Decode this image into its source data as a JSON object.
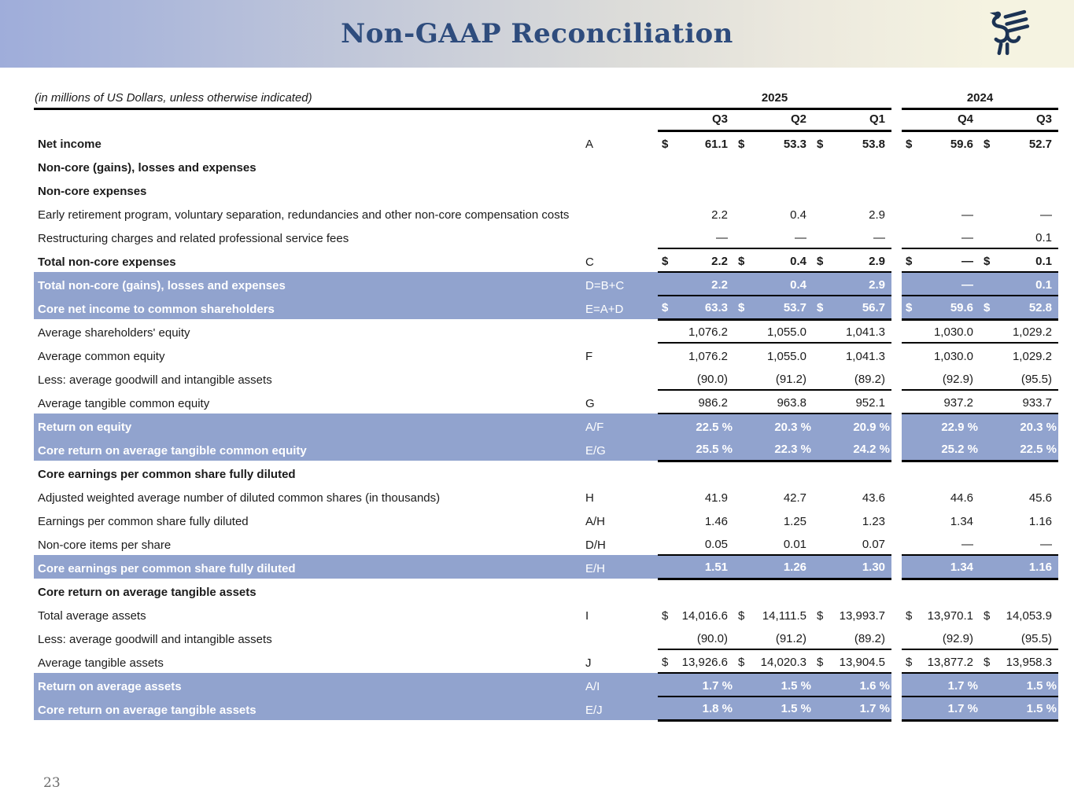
{
  "header": {
    "title": "Non-GAAP Reconciliation",
    "logo_icon": "griffin-bird-logo"
  },
  "colors": {
    "banner_left": "#9FADDA",
    "banner_right": "#F5F3E1",
    "title_navy": "#2E4C7D",
    "logo_navy": "#1C3354",
    "highlight_blue": "#91A3CE",
    "table_line": "#000000"
  },
  "page": {
    "number": "23"
  },
  "table": {
    "note": "(in millions of US Dollars, unless otherwise indicated)",
    "year_groups": [
      {
        "label": "2025",
        "quarters": [
          "Q3",
          "Q2",
          "Q1"
        ]
      },
      {
        "label": "2024",
        "quarters": [
          "Q4",
          "Q3"
        ]
      }
    ],
    "rows": [
      {
        "label": "Net income",
        "ref": "A",
        "style": "bold",
        "line": "none",
        "cells": [
          [
            "$",
            "61.1"
          ],
          [
            "$",
            "53.3"
          ],
          [
            "$",
            "53.8"
          ],
          [
            "$",
            "59.6"
          ],
          [
            "$",
            "52.7"
          ]
        ]
      },
      {
        "label": "Non-core (gains), losses and expenses",
        "ref": "",
        "style": "bold",
        "line": "none",
        "cells": null
      },
      {
        "label": "Non-core expenses",
        "ref": "",
        "style": "bold",
        "line": "none",
        "cells": null
      },
      {
        "label": "Early retirement program, voluntary separation, redundancies and other non-core compensation costs",
        "ref": "",
        "style": "normal",
        "line": "none",
        "cells": [
          [
            "",
            "2.2"
          ],
          [
            "",
            "0.4"
          ],
          [
            "",
            "2.9"
          ],
          [
            "",
            "—"
          ],
          [
            "",
            "—"
          ]
        ]
      },
      {
        "label": "Restructuring charges and related professional service fees",
        "ref": "",
        "style": "normal",
        "line": "bottom",
        "cells": [
          [
            "",
            "—"
          ],
          [
            "",
            "—"
          ],
          [
            "",
            "—"
          ],
          [
            "",
            "—"
          ],
          [
            "",
            "0.1"
          ]
        ]
      },
      {
        "label": "Total non-core expenses",
        "ref": "C",
        "style": "bold",
        "line": "bottom",
        "cells": [
          [
            "$",
            "2.2"
          ],
          [
            "$",
            "0.4"
          ],
          [
            "$",
            "2.9"
          ],
          [
            "$",
            "—"
          ],
          [
            "$",
            "0.1"
          ]
        ]
      },
      {
        "label": "Total non-core (gains), losses and expenses",
        "ref": "D=B+C",
        "style": "highlight",
        "line": "bottom",
        "cells": [
          [
            "",
            "2.2"
          ],
          [
            "",
            "0.4"
          ],
          [
            "",
            "2.9"
          ],
          [
            "",
            "—"
          ],
          [
            "",
            "0.1"
          ]
        ]
      },
      {
        "label": "Core net income to common shareholders",
        "ref": "E=A+D",
        "style": "highlight",
        "line": "bottom2",
        "cells": [
          [
            "$",
            "63.3"
          ],
          [
            "$",
            "53.7"
          ],
          [
            "$",
            "56.7"
          ],
          [
            "$",
            "59.6"
          ],
          [
            "$",
            "52.8"
          ]
        ]
      },
      {
        "label": "Average shareholders' equity",
        "ref": "",
        "style": "normal",
        "line": "bottom",
        "cells": [
          [
            "",
            "1,076.2"
          ],
          [
            "",
            "1,055.0"
          ],
          [
            "",
            "1,041.3"
          ],
          [
            "",
            "1,030.0"
          ],
          [
            "",
            "1,029.2"
          ]
        ]
      },
      {
        "label": "Average common equity",
        "ref": "F",
        "style": "normal",
        "line": "none",
        "cells": [
          [
            "",
            "1,076.2"
          ],
          [
            "",
            "1,055.0"
          ],
          [
            "",
            "1,041.3"
          ],
          [
            "",
            "1,030.0"
          ],
          [
            "",
            "1,029.2"
          ]
        ]
      },
      {
        "label": "Less: average goodwill and intangible assets",
        "ref": "",
        "style": "normal",
        "line": "bottom",
        "cells": [
          [
            "",
            "(90.0)"
          ],
          [
            "",
            "(91.2)"
          ],
          [
            "",
            "(89.2)"
          ],
          [
            "",
            "(92.9)"
          ],
          [
            "",
            "(95.5)"
          ]
        ]
      },
      {
        "label": "Average tangible common equity",
        "ref": "G",
        "style": "normal",
        "line": "bottom",
        "cells": [
          [
            "",
            "986.2"
          ],
          [
            "",
            "963.8"
          ],
          [
            "",
            "952.1"
          ],
          [
            "",
            "937.2"
          ],
          [
            "",
            "933.7"
          ]
        ]
      },
      {
        "label": "Return on equity",
        "ref": "A/F",
        "style": "highlight",
        "line": "none",
        "cells": [
          [
            "",
            "22.5 %"
          ],
          [
            "",
            "20.3 %"
          ],
          [
            "",
            "20.9 %"
          ],
          [
            "",
            "22.9 %"
          ],
          [
            "",
            "20.3 %"
          ]
        ]
      },
      {
        "label": "Core return on average tangible common equity",
        "ref": "E/G",
        "style": "highlight",
        "line": "bottom2",
        "cells": [
          [
            "",
            "25.5 %"
          ],
          [
            "",
            "22.3 %"
          ],
          [
            "",
            "24.2 %"
          ],
          [
            "",
            "25.2 %"
          ],
          [
            "",
            "22.5 %"
          ]
        ]
      },
      {
        "label": "Core earnings per common share fully diluted",
        "ref": "",
        "style": "bold",
        "line": "none",
        "cells": null
      },
      {
        "label": "Adjusted weighted average number of diluted common shares (in thousands)",
        "ref": "H",
        "style": "normal",
        "line": "none",
        "cells": [
          [
            "",
            "41.9"
          ],
          [
            "",
            "42.7"
          ],
          [
            "",
            "43.6"
          ],
          [
            "",
            "44.6"
          ],
          [
            "",
            "45.6"
          ]
        ]
      },
      {
        "label": "Earnings per common share fully diluted",
        "ref": "A/H",
        "style": "normal",
        "line": "none",
        "cells": [
          [
            "",
            "1.46"
          ],
          [
            "",
            "1.25"
          ],
          [
            "",
            "1.23"
          ],
          [
            "",
            "1.34"
          ],
          [
            "",
            "1.16"
          ]
        ]
      },
      {
        "label": "Non-core items per share",
        "ref": "D/H",
        "style": "normal",
        "line": "bottom",
        "cells": [
          [
            "",
            "0.05"
          ],
          [
            "",
            "0.01"
          ],
          [
            "",
            "0.07"
          ],
          [
            "",
            "—"
          ],
          [
            "",
            "—"
          ]
        ]
      },
      {
        "label": "Core earnings per common share fully diluted",
        "ref": "E/H",
        "style": "highlight",
        "line": "bottom2",
        "cells": [
          [
            "",
            "1.51"
          ],
          [
            "",
            "1.26"
          ],
          [
            "",
            "1.30"
          ],
          [
            "",
            "1.34"
          ],
          [
            "",
            "1.16"
          ]
        ]
      },
      {
        "label": "Core return on average tangible assets",
        "ref": "",
        "style": "bold",
        "line": "none",
        "cells": null
      },
      {
        "label": "Total average assets",
        "ref": "I",
        "style": "normal",
        "line": "none",
        "cells": [
          [
            "$",
            "14,016.6"
          ],
          [
            "$",
            "14,111.5"
          ],
          [
            "$",
            "13,993.7"
          ],
          [
            "$",
            "13,970.1"
          ],
          [
            "$",
            "14,053.9"
          ]
        ]
      },
      {
        "label": "Less: average goodwill and intangible assets",
        "ref": "",
        "style": "normal",
        "line": "bottom",
        "cells": [
          [
            "",
            "(90.0)"
          ],
          [
            "",
            "(91.2)"
          ],
          [
            "",
            "(89.2)"
          ],
          [
            "",
            "(92.9)"
          ],
          [
            "",
            "(95.5)"
          ]
        ]
      },
      {
        "label": "Average tangible assets",
        "ref": "J",
        "style": "normal",
        "line": "bottom",
        "cells": [
          [
            "$",
            "13,926.6"
          ],
          [
            "$",
            "14,020.3"
          ],
          [
            "$",
            "13,904.5"
          ],
          [
            "$",
            "13,877.2"
          ],
          [
            "$",
            "13,958.3"
          ]
        ]
      },
      {
        "label": "Return on average assets",
        "ref": "A/I",
        "style": "highlight",
        "line": "bottom",
        "cells": [
          [
            "",
            "1.7 %"
          ],
          [
            "",
            "1.5 %"
          ],
          [
            "",
            "1.6 %"
          ],
          [
            "",
            "1.7 %"
          ],
          [
            "",
            "1.5 %"
          ]
        ]
      },
      {
        "label": "Core return on average tangible assets",
        "ref": "E/J",
        "style": "highlight",
        "line": "bottom2",
        "cells": [
          [
            "",
            "1.8 %"
          ],
          [
            "",
            "1.5 %"
          ],
          [
            "",
            "1.7 %"
          ],
          [
            "",
            "1.7 %"
          ],
          [
            "",
            "1.5 %"
          ]
        ]
      }
    ]
  }
}
